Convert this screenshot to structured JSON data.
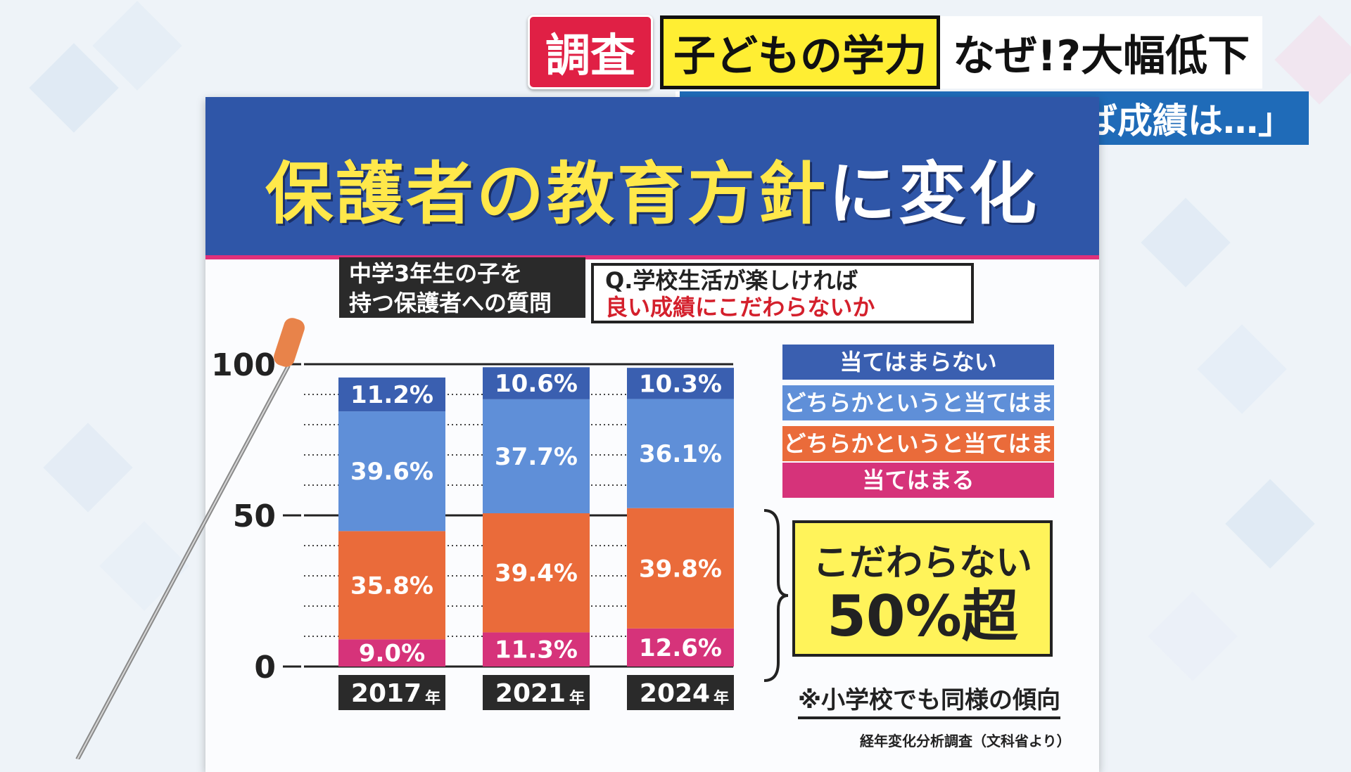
{
  "telop": {
    "tag": "調査",
    "topic": "子どもの学力",
    "headline": "なぜ!?大幅低下",
    "subline": "保護者「学校が楽しければ成績は…」"
  },
  "board": {
    "title_main": "保護者の教育方針",
    "title_rest": "に変化",
    "question_target_line1": "中学3年生の子を",
    "question_target_line2": "持つ保護者への質問",
    "question_line1": "Q.学校生活が楽しければ",
    "question_line2": "良い成績にこだわらないか",
    "callout_line1": "こだわらない",
    "callout_line2": "50%超",
    "note": "※小学校でも同様の傾向",
    "source": "経年変化分析調査（文科省より）"
  },
  "colors": {
    "dark_blue": "#3a5fb0",
    "light_blue": "#5f8fd8",
    "orange": "#ea6b3a",
    "pink": "#d6337a",
    "header_blue": "#2f56a8",
    "title_yellow": "#ffe84a"
  },
  "chart_data": {
    "type": "bar",
    "stacked": true,
    "categories": [
      "2017",
      "2021",
      "2024"
    ],
    "category_suffix": "年",
    "ylim": [
      0,
      100
    ],
    "yticks": [
      "0",
      "50",
      "100"
    ],
    "series": [
      {
        "name": "当てはまる",
        "values": [
          9.0,
          11.3,
          12.6
        ],
        "labels": [
          "9.0%",
          "11.3%",
          "12.6%"
        ],
        "color": "#d6337a"
      },
      {
        "name": "どちらかというと当てはまる",
        "values": [
          35.8,
          39.4,
          39.8
        ],
        "labels": [
          "35.8%",
          "39.4%",
          "39.8%"
        ],
        "color": "#ea6b3a"
      },
      {
        "name": "どちらかというと当てはまらない",
        "values": [
          39.6,
          37.7,
          36.1
        ],
        "labels": [
          "39.6%",
          "37.7%",
          "36.1%"
        ],
        "color": "#5f8fd8"
      },
      {
        "name": "当てはまらない",
        "values": [
          11.2,
          10.6,
          10.3
        ],
        "labels": [
          "11.2%",
          "10.6%",
          "10.3%"
        ],
        "color": "#3a5fb0"
      }
    ],
    "legend": "right",
    "legend_order": [
      "当てはまらない",
      "どちらかというと当てはまらない",
      "どちらかというと当てはまる",
      "当てはまる"
    ],
    "grid": true
  }
}
